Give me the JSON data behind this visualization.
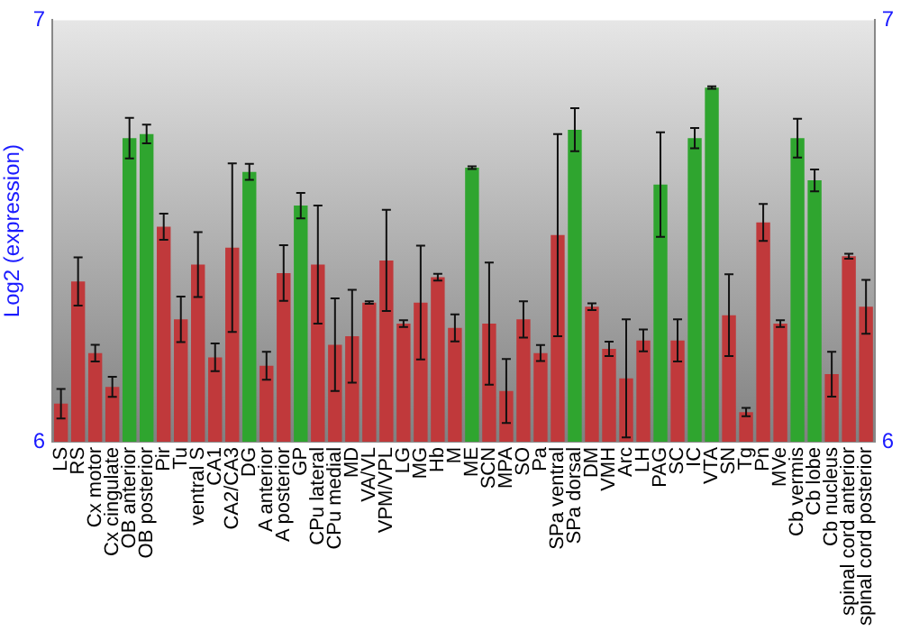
{
  "chart_data": {
    "type": "bar",
    "ylabel": "Log2 (expression)",
    "categories": [
      "LS",
      "RS",
      "Cx motor",
      "Cx cingulate",
      "OB anterior",
      "OB posterior",
      "Pir",
      "Tu",
      "ventral S",
      "CA1",
      "CA2/CA3",
      "DG",
      "A anterior",
      "A posterior",
      "GP",
      "CPu lateral",
      "CPu medial",
      "MD",
      "VA/VL",
      "VPM/VPL",
      "LG",
      "MG",
      "Hb",
      "M",
      "ME",
      "SCN",
      "MPA",
      "SO",
      "Pa",
      "SPa ventral",
      "SPa dorsal",
      "DM",
      "VMH",
      "Arc",
      "LH",
      "PAG",
      "SC",
      "IC",
      "VTA",
      "SN",
      "Tg",
      "Pn",
      "MVe",
      "Cb vermis",
      "Cb lobe",
      "Cb nucleus",
      "spinal cord anterior",
      "spinal cord posterior"
    ],
    "values": [
      6.09,
      6.38,
      6.21,
      6.13,
      6.72,
      6.73,
      6.51,
      6.29,
      6.42,
      6.2,
      6.46,
      6.64,
      6.18,
      6.4,
      6.56,
      6.42,
      6.23,
      6.25,
      6.33,
      6.43,
      6.28,
      6.33,
      6.39,
      6.27,
      6.65,
      6.28,
      6.12,
      6.29,
      6.21,
      6.49,
      6.74,
      6.32,
      6.22,
      6.15,
      6.24,
      6.61,
      6.24,
      6.72,
      6.84,
      6.3,
      6.07,
      6.52,
      6.28,
      6.72,
      6.62,
      6.16,
      6.44,
      6.32
    ],
    "errors": [
      0.035,
      0.057,
      0.02,
      0.024,
      0.048,
      0.022,
      0.031,
      0.054,
      0.077,
      0.033,
      0.2,
      0.019,
      0.033,
      0.066,
      0.03,
      0.14,
      0.11,
      0.11,
      0.003,
      0.12,
      0.008,
      0.135,
      0.008,
      0.032,
      0.003,
      0.145,
      0.076,
      0.043,
      0.019,
      0.24,
      0.051,
      0.008,
      0.017,
      0.14,
      0.026,
      0.124,
      0.05,
      0.024,
      0.003,
      0.097,
      0.01,
      0.044,
      0.008,
      0.046,
      0.026,
      0.053,
      0.006,
      0.064
    ],
    "colors": [
      "#c0393b",
      "#c0393b",
      "#c0393b",
      "#c0393b",
      "#2fa52f",
      "#2fa52f",
      "#c0393b",
      "#c0393b",
      "#c0393b",
      "#c0393b",
      "#c0393b",
      "#2fa52f",
      "#c0393b",
      "#c0393b",
      "#2fa52f",
      "#c0393b",
      "#c0393b",
      "#c0393b",
      "#c0393b",
      "#c0393b",
      "#c0393b",
      "#c0393b",
      "#c0393b",
      "#c0393b",
      "#2fa52f",
      "#c0393b",
      "#c0393b",
      "#c0393b",
      "#c0393b",
      "#c0393b",
      "#2fa52f",
      "#c0393b",
      "#c0393b",
      "#c0393b",
      "#c0393b",
      "#2fa52f",
      "#c0393b",
      "#2fa52f",
      "#2fa52f",
      "#c0393b",
      "#c0393b",
      "#c0393b",
      "#c0393b",
      "#2fa52f",
      "#2fa52f",
      "#c0393b",
      "#c0393b",
      "#c0393b"
    ],
    "ylim": [
      6,
      7
    ],
    "yticks": [
      6,
      7
    ],
    "y2lim": [
      6,
      7
    ],
    "y2ticks": [
      6,
      7
    ]
  }
}
